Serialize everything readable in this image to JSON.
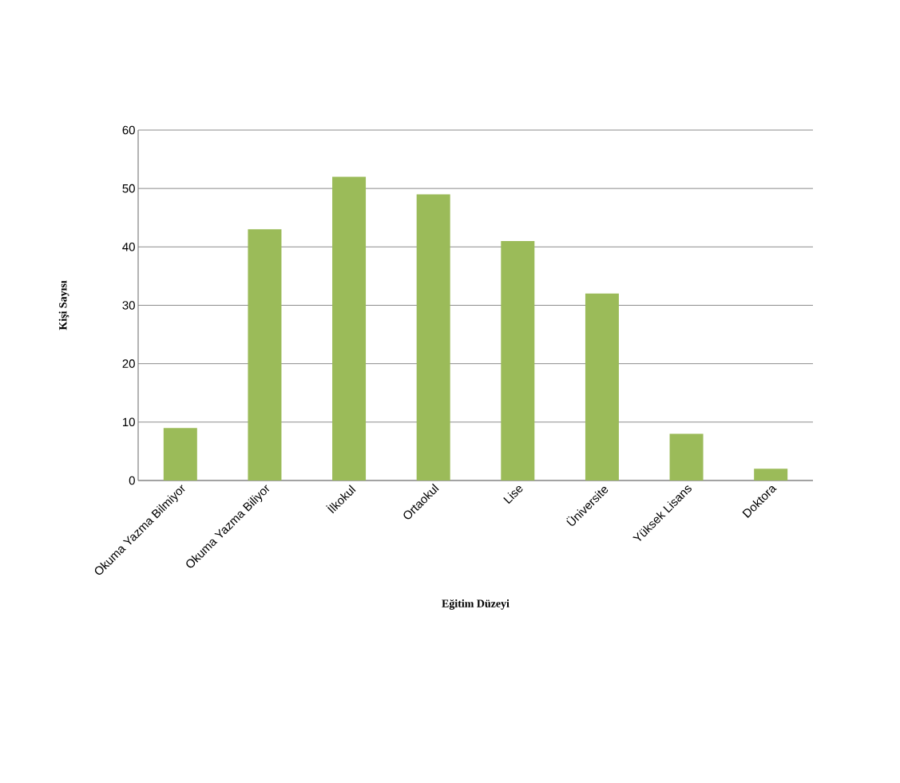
{
  "chart_data": {
    "type": "bar",
    "xlabel": "Eğitim Düzeyi",
    "ylabel": "Kişi Sayısı",
    "categories": [
      "Okuma Yazma Bilmiyor",
      "Okuma Yazma Biliyor",
      "İlkokul",
      "Ortaokul",
      "Lise",
      "Üniversite",
      "Yüksek Lisans",
      "Doktora"
    ],
    "values": [
      9,
      43,
      52,
      49,
      41,
      32,
      8,
      2
    ],
    "color": "#9bbb59",
    "ylim": [
      0,
      60
    ],
    "yticks": [
      0,
      10,
      20,
      30,
      40,
      50,
      60
    ],
    "grid": "y"
  }
}
